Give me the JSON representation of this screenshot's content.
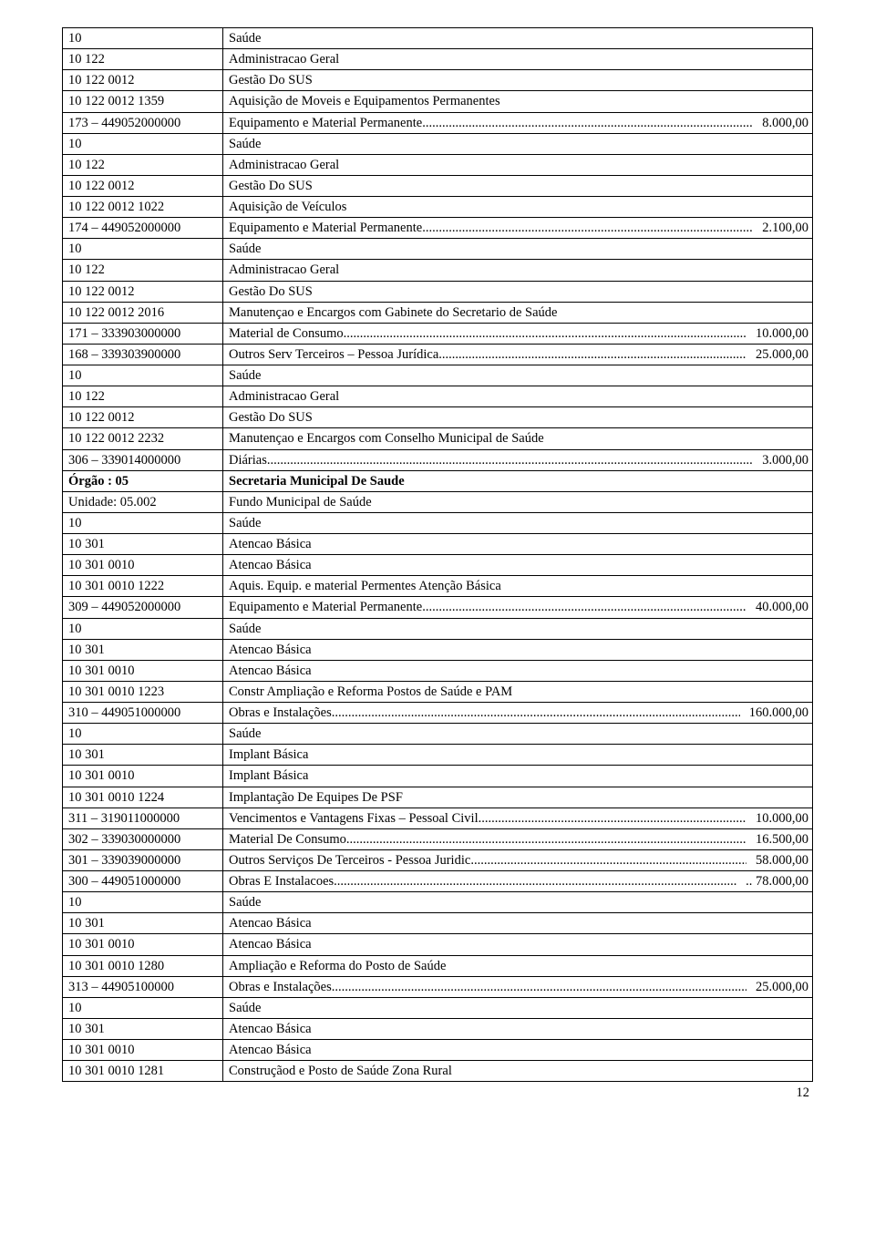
{
  "page_number": "12",
  "colors": {
    "text": "#000000",
    "border": "#000000",
    "background": "#ffffff"
  },
  "typography": {
    "font_family": "Times New Roman",
    "font_size_pt": 11
  },
  "rows": [
    {
      "code": "10",
      "desc": "Saúde"
    },
    {
      "code": "10 122",
      "desc": "Administracao Geral"
    },
    {
      "code": "10 122 0012",
      "desc": "Gestão Do SUS"
    },
    {
      "code": "10 122 0012 1359",
      "desc": "Aquisição de Moveis e Equipamentos Permanentes"
    },
    {
      "code": "173 – 449052000000",
      "dots": true,
      "desc": "Equipamento e Material Permanente ",
      "value": "8.000,00"
    },
    {
      "code": "10",
      "desc": "Saúde"
    },
    {
      "code": "10 122",
      "desc": "Administracao Geral"
    },
    {
      "code": "10 122 0012",
      "desc": "Gestão Do SUS"
    },
    {
      "code": "10 122 0012 1022",
      "desc": "Aquisição de Veículos"
    },
    {
      "code": "174 – 449052000000",
      "dots": true,
      "desc": "Equipamento e Material Permanente ",
      "value": "2.100,00"
    },
    {
      "code": "10",
      "desc": "Saúde"
    },
    {
      "code": "10 122",
      "desc": "Administracao Geral"
    },
    {
      "code": "10 122 0012",
      "desc": "Gestão Do SUS"
    },
    {
      "code": "10 122 0012 2016",
      "desc": "Manutençao e Encargos com Gabinete do Secretario de Saúde"
    },
    {
      "code": "171 – 333903000000",
      "dots": true,
      "desc": "Material de Consumo ",
      "value": "10.000,00"
    },
    {
      "code": "168 – 339303900000",
      "dots": true,
      "desc": "Outros Serv Terceiros – Pessoa Jurídica ",
      "value": "25.000,00"
    },
    {
      "code": "10",
      "desc": "Saúde"
    },
    {
      "code": "10 122",
      "desc": "Administracao Geral"
    },
    {
      "code": "10 122 0012",
      "desc": "Gestão Do SUS"
    },
    {
      "code": "10 122 0012 2232",
      "desc": "Manutençao e Encargos com Conselho Municipal de Saúde"
    },
    {
      "code": "306 – 339014000000",
      "dots": true,
      "desc": "Diárias ",
      "value": "3.000,00"
    },
    {
      "code": "Órgão  : 05",
      "desc": "Secretaria Municipal De Saude",
      "bold_code": true,
      "bold_desc": true
    },
    {
      "code": "Unidade: 05.002",
      "desc": "Fundo Municipal de Saúde"
    },
    {
      "code": "10",
      "desc": "Saúde"
    },
    {
      "code": "10 301",
      "desc": "Atencao Básica"
    },
    {
      "code": "10 301 0010",
      "desc": "Atencao Básica"
    },
    {
      "code": "10 301 0010 1222",
      "desc": "Aquis. Equip. e material Permentes Atenção Básica"
    },
    {
      "code": "309 – 449052000000",
      "dots": true,
      "desc": "Equipamento e Material Permanente ",
      "value": "40.000,00"
    },
    {
      "code": "10",
      "desc": "Saúde"
    },
    {
      "code": "10 301",
      "desc": "Atencao Básica"
    },
    {
      "code": "10 301 0010",
      "desc": "Atencao Básica"
    },
    {
      "code": "10 301 0010 1223",
      "desc": "Constr Ampliação e Reforma Postos de Saúde e PAM"
    },
    {
      "code": "310 – 449051000000",
      "dots": true,
      "desc": "Obras e Instalações",
      "value": "160.000,00"
    },
    {
      "code": "10",
      "desc": "Saúde"
    },
    {
      "code": "10 301",
      "desc": "Implant Básica"
    },
    {
      "code": "10 301 0010",
      "desc": "Implant Básica"
    },
    {
      "code": "10 301 0010 1224",
      "desc": "Implantação De Equipes De PSF"
    },
    {
      "code": "311 – 319011000000",
      "dots": true,
      "desc": "Vencimentos e Vantagens Fixas – Pessoal Civil ",
      "value": "10.000,00"
    },
    {
      "code": "302 – 339030000000",
      "dots": true,
      "desc": "Material De Consumo ",
      "value": "16.500,00"
    },
    {
      "code": "301 – 339039000000",
      "dots": true,
      "desc": "Outros Serviços De Terceiros - Pessoa Juridic ",
      "value": "58.000,00"
    },
    {
      "code": "300 – 449051000000",
      "dots": true,
      "desc": "Obras E Instalacoes ",
      "value": "78.000,00",
      "trail_dots_extra": ".."
    },
    {
      "code": "10",
      "desc": "Saúde"
    },
    {
      "code": "10 301",
      "desc": "Atencao Básica"
    },
    {
      "code": "10 301 0010",
      "desc": "Atencao Básica"
    },
    {
      "code": "10 301 0010 1280",
      "desc": "Ampliação e Reforma do Posto de Saúde"
    },
    {
      "code": "313 – 44905100000",
      "dots": true,
      "desc": "Obras e Instalações",
      "value": "25.000,00"
    },
    {
      "code": "10",
      "desc": "Saúde"
    },
    {
      "code": "10 301",
      "desc": "Atencao Básica"
    },
    {
      "code": "10 301 0010",
      "desc": "Atencao Básica"
    },
    {
      "code": "10 301 0010 1281",
      "desc": "Construçãod e Posto de Saúde Zona Rural"
    }
  ]
}
